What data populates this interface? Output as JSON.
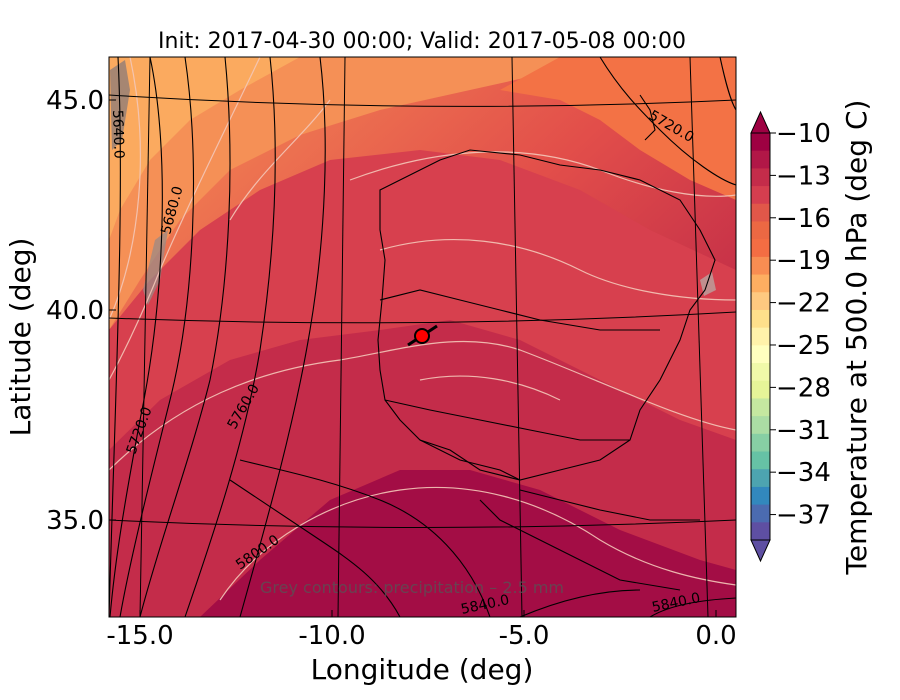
{
  "title": "Init: 2017-04-30 00:00; Valid: 2017-05-08 00:00",
  "xlabel": "Longitude (deg)",
  "ylabel": "Latitude (deg)",
  "x_ticks": [
    "-15.0",
    "-10.0",
    "-5.0",
    "0.0"
  ],
  "y_ticks": [
    "45.0",
    "40.0",
    "35.0"
  ],
  "colorbar": {
    "label": "Temperature at 500.0 hPa (deg C)",
    "ticks": [
      "−10",
      "−13",
      "−16",
      "−19",
      "−22",
      "−25",
      "−28",
      "−31",
      "−34",
      "−37"
    ],
    "colors": [
      "#9e0142",
      "#b11747",
      "#c42c4a",
      "#d53e4f",
      "#e15749",
      "#ec6843",
      "#f46d43",
      "#f88d52",
      "#fdae61",
      "#fec980",
      "#fee08b",
      "#fff2aa",
      "#ffffbf",
      "#f0f9a9",
      "#e6f598",
      "#c5e8a0",
      "#abdda4",
      "#87cfa4",
      "#66c2a5",
      "#4da4b0",
      "#3288bd",
      "#4b6bb0",
      "#5e4fa2"
    ]
  },
  "annotation": "Grey contours: precipitation – 2.5 mm",
  "contour_labels": [
    "5640.0",
    "5680.0",
    "5720.0",
    "5760.0",
    "5800.0",
    "5840.0",
    "5840.0",
    "5720.0"
  ],
  "marker": {
    "lon": -7.7,
    "lat": 39.4,
    "color": "#ff0000"
  },
  "chart_data": {
    "type": "heatmap",
    "title": "Init: 2017-04-30 00:00; Valid: 2017-05-08 00:00",
    "xlabel": "Longitude (deg)",
    "ylabel": "Latitude (deg)",
    "xlim": [
      -15.8,
      0.2
    ],
    "ylim": [
      32.7,
      46.0
    ],
    "colorbar_range": [
      -37,
      -10
    ]
  }
}
